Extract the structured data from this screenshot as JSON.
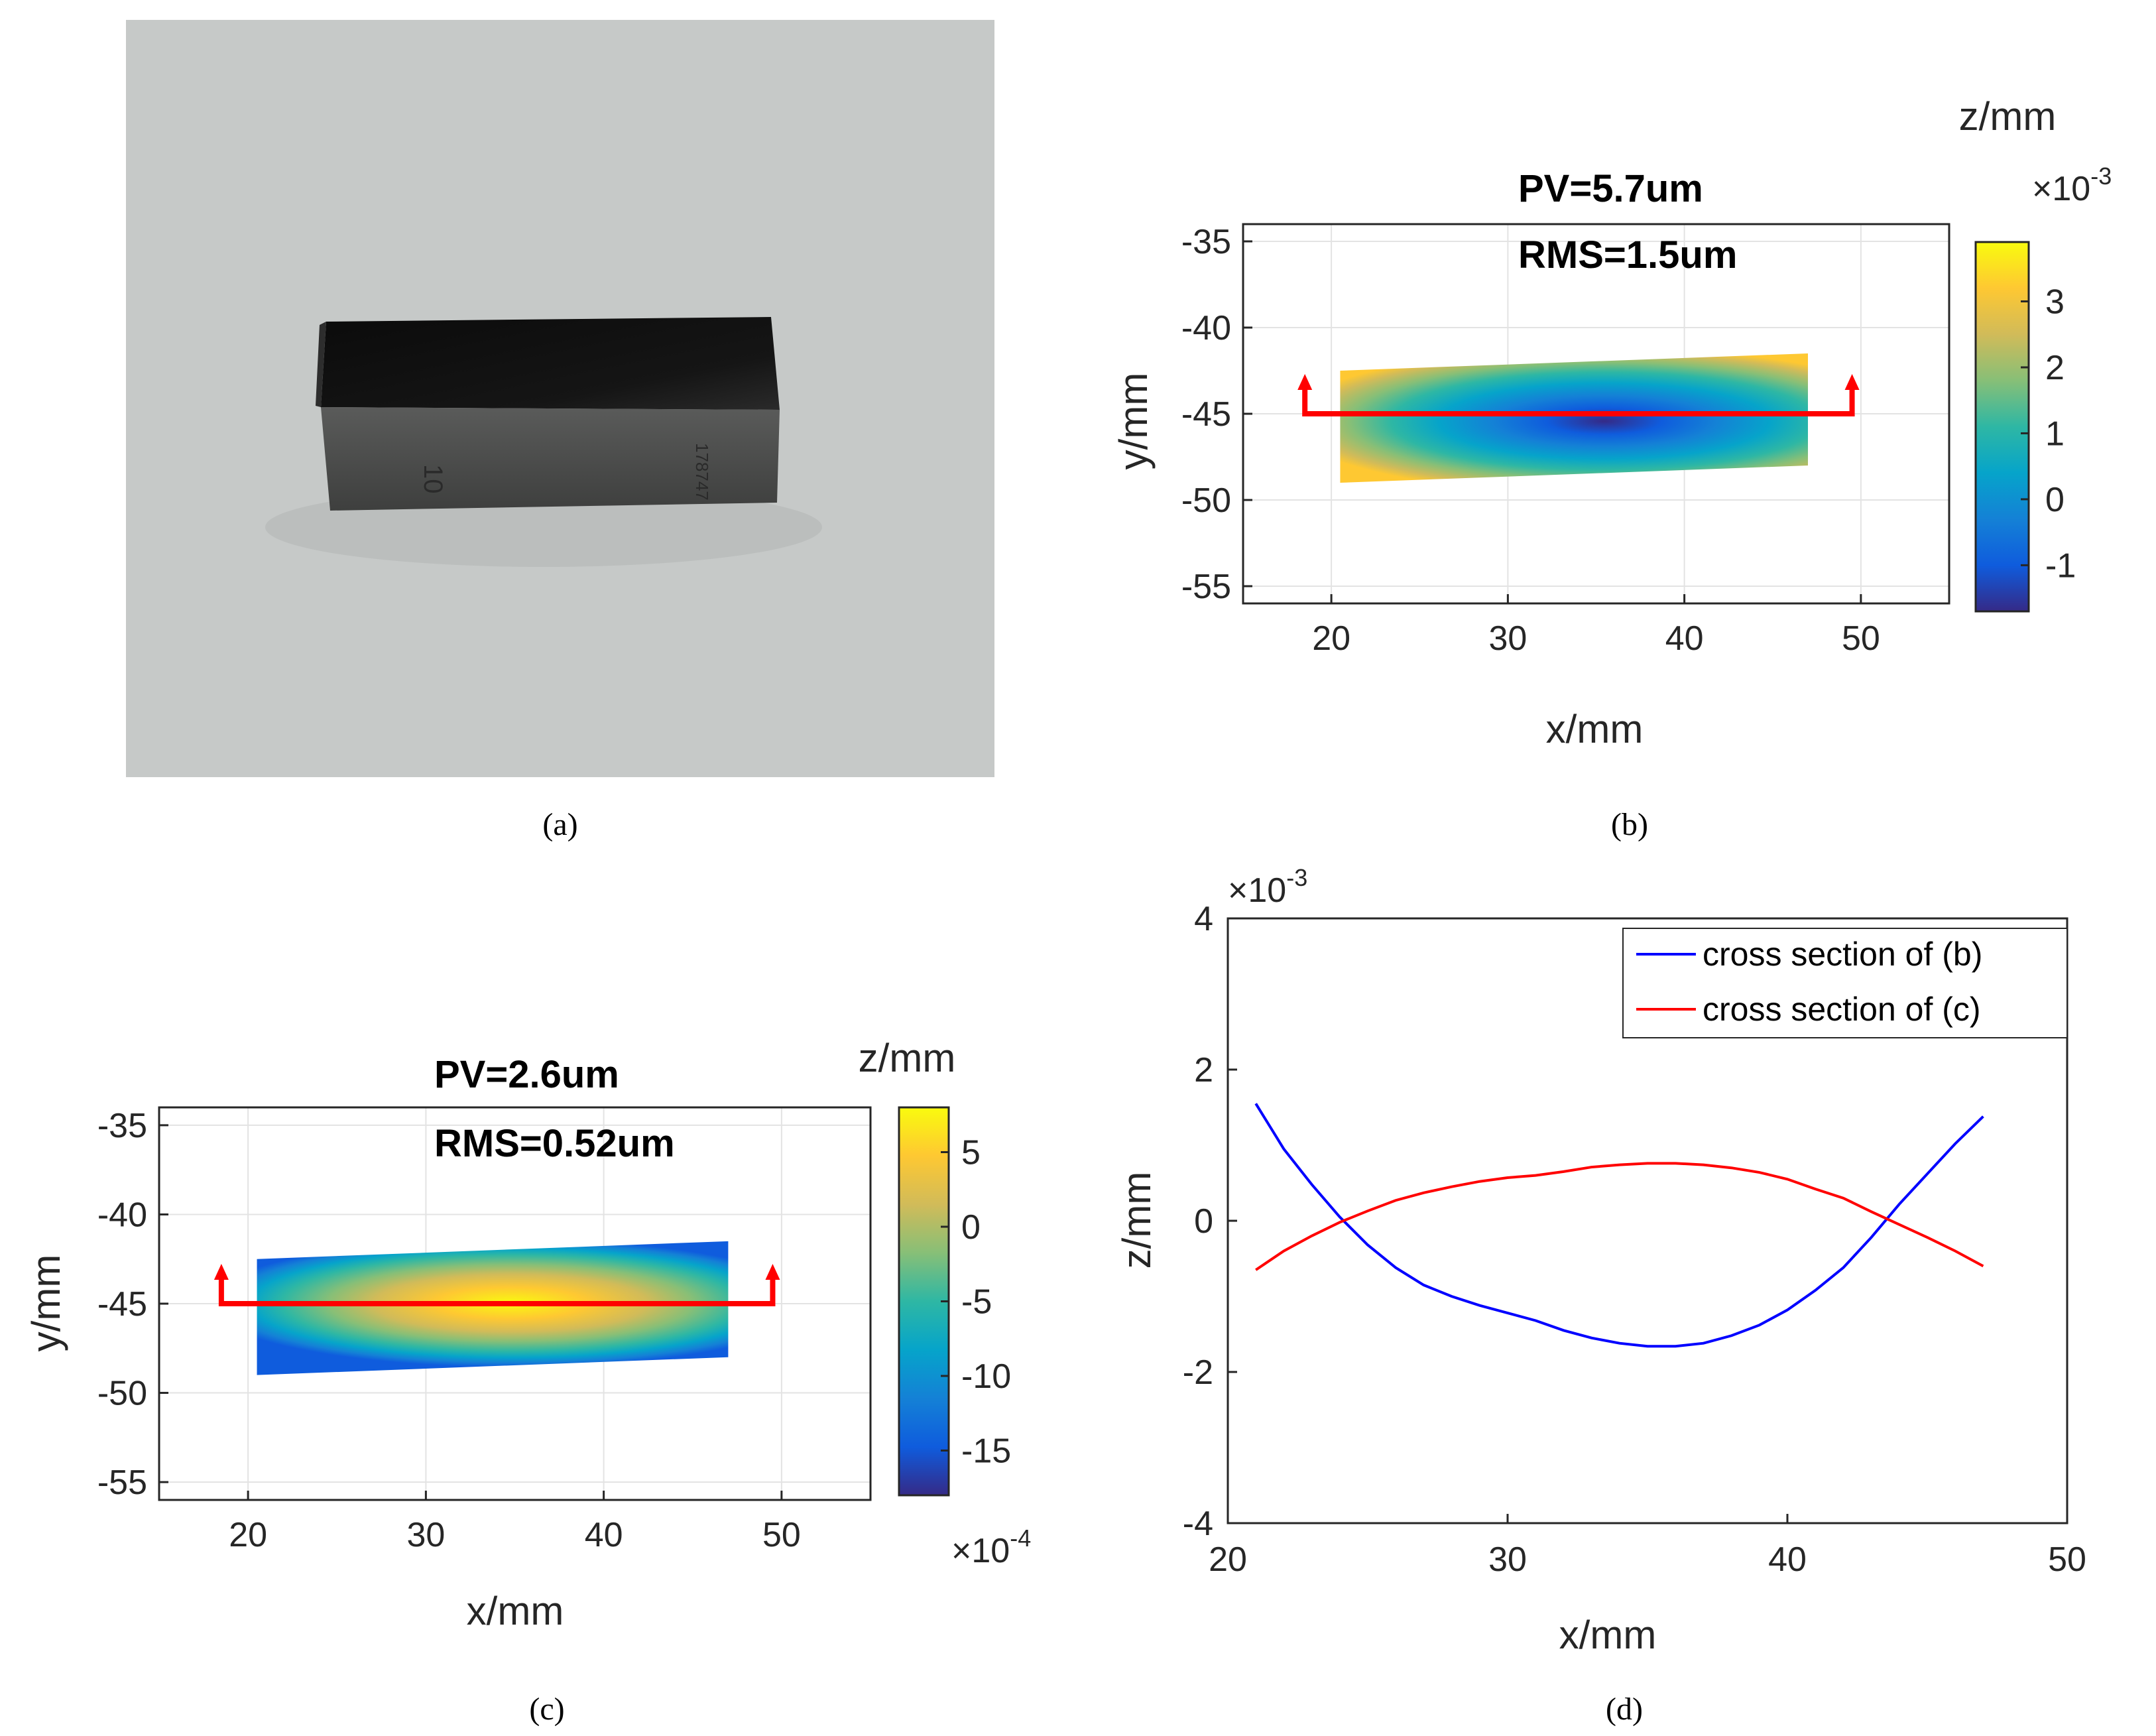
{
  "captions": {
    "a": "(a)",
    "b": "(b)",
    "c": "(c)",
    "d": "(d)"
  },
  "photo": {
    "background_color": "#c6c9c8",
    "block_top_color": "#0b0b0b",
    "block_face_color": "#4a4b4a",
    "engraved_text_1": "10",
    "engraved_text_2": "178747"
  },
  "colors": {
    "profile_line": "#ff0000",
    "series_b": "#0000ff",
    "series_c": "#ff0000",
    "parula": [
      "#352a87",
      "#0f5cdd",
      "#1481d6",
      "#06a4ca",
      "#2eb7a4",
      "#87bf77",
      "#d1bb59",
      "#fec832",
      "#f9fb0e"
    ]
  },
  "chart_data": [
    {
      "id": "b",
      "type": "heatmap",
      "title_lines": [
        "PV=5.7um",
        "RMS=1.5um"
      ],
      "xlabel": "x/mm",
      "ylabel": "y/mm",
      "xlim": [
        15,
        55
      ],
      "ylim": [
        -56,
        -34
      ],
      "xticks": [
        20,
        30,
        40,
        50
      ],
      "yticks": [
        -35,
        -40,
        -45,
        -50,
        -55
      ],
      "grid": true,
      "colorbar": {
        "label": "z/mm",
        "exponent_label": "×10",
        "exponent": "-3",
        "range": [
          -1.7,
          3.9
        ],
        "ticks": [
          3,
          2,
          1,
          0,
          -1
        ]
      },
      "surface": {
        "corners": [
          [
            20.5,
            -42.5
          ],
          [
            47,
            -41.5
          ],
          [
            47,
            -48
          ],
          [
            20.5,
            -49
          ]
        ],
        "shape": "bowl",
        "min_at": [
          35.5,
          -45.5
        ]
      },
      "profile_line": {
        "y": -45,
        "x_start": 18.5,
        "x_end": 49.5
      }
    },
    {
      "id": "c",
      "type": "heatmap",
      "title_lines": [
        "PV=2.6um",
        "RMS=0.52um"
      ],
      "xlabel": "x/mm",
      "ylabel": "y/mm",
      "xlim": [
        15,
        55
      ],
      "ylim": [
        -56,
        -34
      ],
      "xticks": [
        20,
        30,
        40,
        50
      ],
      "yticks": [
        -35,
        -40,
        -45,
        -50,
        -55
      ],
      "grid": true,
      "colorbar": {
        "label": "z/mm",
        "exponent_label": "×10",
        "exponent": "-4",
        "range": [
          -18,
          8
        ],
        "ticks": [
          5,
          0,
          -5,
          -10,
          -15
        ]
      },
      "surface": {
        "corners": [
          [
            20.5,
            -42.5
          ],
          [
            47,
            -41.5
          ],
          [
            47,
            -48
          ],
          [
            20.5,
            -49
          ]
        ],
        "shape": "dome",
        "max_at": [
          34,
          -45.5
        ]
      },
      "profile_line": {
        "y": -45,
        "x_start": 18.5,
        "x_end": 49.5
      }
    },
    {
      "id": "d",
      "type": "line",
      "xlabel": "x/mm",
      "ylabel": "z/mm",
      "xlim": [
        20,
        50
      ],
      "ylim": [
        -4,
        4
      ],
      "xticks": [
        20,
        30,
        40,
        50
      ],
      "yticks": [
        4,
        2,
        0,
        -2,
        -4
      ],
      "y_exponent_label": "×10",
      "y_exponent": "-3",
      "grid": false,
      "legend_position": "top-right",
      "series": [
        {
          "name": "cross section of (b)",
          "x": [
            21,
            21.5,
            22,
            23,
            24,
            25,
            26,
            27,
            28,
            29,
            30,
            31,
            32,
            33,
            34,
            35,
            36,
            37,
            38,
            39,
            40,
            41,
            42,
            43,
            44,
            45,
            46,
            47
          ],
          "y": [
            1.55,
            1.25,
            0.95,
            0.48,
            0.05,
            -0.32,
            -0.62,
            -0.85,
            -1.0,
            -1.12,
            -1.22,
            -1.32,
            -1.45,
            -1.55,
            -1.62,
            -1.66,
            -1.66,
            -1.62,
            -1.52,
            -1.38,
            -1.18,
            -0.92,
            -0.62,
            -0.22,
            0.22,
            0.62,
            1.02,
            1.38
          ]
        },
        {
          "name": "cross section of (c)",
          "x": [
            21,
            22,
            23,
            24,
            25,
            26,
            27,
            28,
            29,
            30,
            31,
            32,
            33,
            34,
            35,
            36,
            37,
            38,
            39,
            40,
            41,
            42,
            43,
            44,
            45,
            46,
            47
          ],
          "y": [
            -0.65,
            -0.4,
            -0.2,
            -0.02,
            0.13,
            0.27,
            0.37,
            0.45,
            0.52,
            0.57,
            0.6,
            0.65,
            0.71,
            0.74,
            0.76,
            0.76,
            0.74,
            0.7,
            0.64,
            0.55,
            0.42,
            0.3,
            0.12,
            -0.05,
            -0.22,
            -0.4,
            -0.6
          ]
        }
      ]
    }
  ]
}
